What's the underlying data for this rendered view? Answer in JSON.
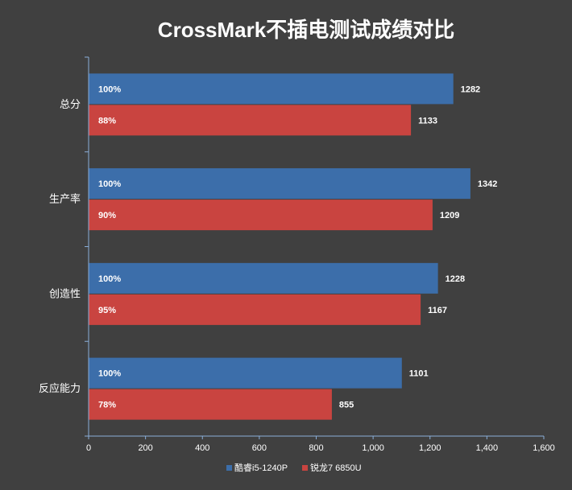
{
  "chart_data": {
    "type": "bar",
    "orientation": "horizontal",
    "title": "CrossMark不插电测试成绩对比",
    "xlabel": "",
    "ylabel": "",
    "categories": [
      "总分",
      "生产率",
      "创造性",
      "反应能力"
    ],
    "series": [
      {
        "name": "酷睿i5-1240P",
        "values": [
          1282,
          1342,
          1228,
          1101
        ],
        "percent_labels": [
          "100%",
          "100%",
          "100%",
          "100%"
        ],
        "color": "#3C6EAA"
      },
      {
        "name": "锐龙7 6850U",
        "values": [
          1133,
          1209,
          1167,
          855
        ],
        "percent_labels": [
          "88%",
          "90%",
          "95%",
          "78%"
        ],
        "color": "#C94440"
      }
    ],
    "xlim": [
      0,
      1600
    ],
    "xticks": [
      0,
      200,
      400,
      600,
      800,
      1000,
      1200,
      1400,
      1600
    ],
    "xtick_labels": [
      "0",
      "200",
      "400",
      "600",
      "800",
      "1,000",
      "1,200",
      "1,400",
      "1,600"
    ],
    "grid": false,
    "legend_position": "bottom"
  }
}
